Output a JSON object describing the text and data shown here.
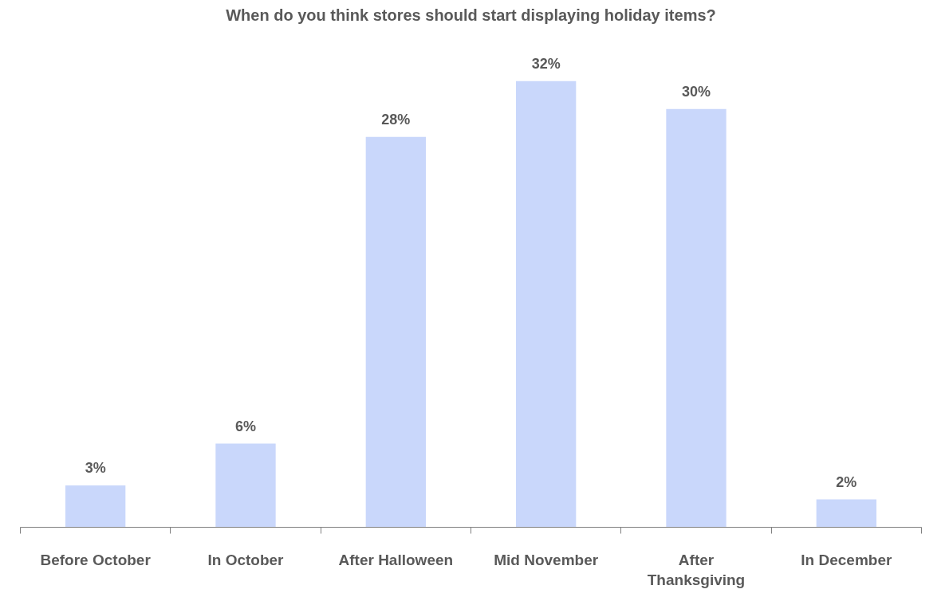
{
  "chart_data": {
    "type": "bar",
    "title": "When do you think stores should start displaying holiday items?",
    "categories": [
      "Before October",
      "In October",
      "After Halloween",
      "Mid November",
      "After Thanksgiving",
      "In December"
    ],
    "values": [
      3,
      6,
      28,
      32,
      30,
      2
    ],
    "value_labels": [
      "3%",
      "6%",
      "28%",
      "32%",
      "30%",
      "2%"
    ],
    "color": "#c9d7fb"
  }
}
